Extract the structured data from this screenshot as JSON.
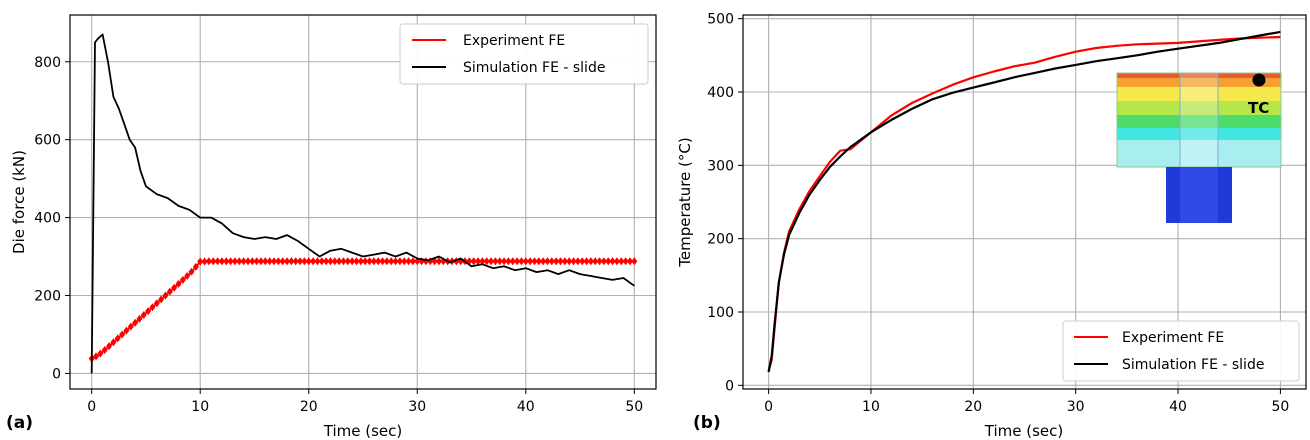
{
  "panels": [
    {
      "label": "(a)"
    },
    {
      "label": "(b)"
    }
  ],
  "chart_data": [
    {
      "type": "line",
      "xlabel": "Time (sec)",
      "ylabel": "Die force (kN)",
      "xlim": [
        -2,
        52
      ],
      "ylim": [
        -40,
        920
      ],
      "xticks": [
        0,
        10,
        20,
        30,
        40,
        50
      ],
      "yticks": [
        0,
        200,
        400,
        600,
        800
      ],
      "grid": true,
      "legend_position": "top-right",
      "series": [
        {
          "name": "Experiment FE",
          "color": "#ff0000",
          "marker": "diamond",
          "x": [
            0,
            0.5,
            1,
            2,
            3,
            4,
            5,
            6,
            7,
            8,
            9,
            9.5,
            10,
            11,
            12,
            14,
            16,
            18,
            20,
            22,
            24,
            26,
            28,
            30,
            32,
            34,
            36,
            38,
            40,
            42,
            44,
            46,
            48,
            50
          ],
          "values": [
            38,
            45,
            55,
            80,
            105,
            130,
            155,
            180,
            205,
            230,
            255,
            270,
            287,
            288,
            288,
            288,
            288,
            288,
            288,
            288,
            288,
            288,
            288,
            288,
            288,
            288,
            288,
            288,
            288,
            288,
            288,
            288,
            288,
            288
          ]
        },
        {
          "name": "Simulation FE - slide",
          "color": "#000000",
          "x": [
            0,
            0.3,
            0.6,
            1,
            1.5,
            2,
            2.5,
            3,
            3.5,
            4,
            4.5,
            5,
            6,
            7,
            8,
            9,
            10,
            11,
            12,
            13,
            14,
            15,
            16,
            17,
            18,
            19,
            20,
            21,
            22,
            23,
            24,
            25,
            26,
            27,
            28,
            29,
            30,
            31,
            32,
            33,
            34,
            35,
            36,
            37,
            38,
            39,
            40,
            41,
            42,
            43,
            44,
            45,
            46,
            47,
            48,
            49,
            50
          ],
          "values": [
            0,
            850,
            860,
            870,
            800,
            710,
            680,
            640,
            600,
            580,
            520,
            480,
            460,
            450,
            430,
            420,
            400,
            400,
            385,
            360,
            350,
            345,
            350,
            345,
            355,
            340,
            320,
            300,
            315,
            320,
            310,
            300,
            305,
            310,
            300,
            310,
            295,
            290,
            300,
            285,
            295,
            275,
            280,
            270,
            275,
            265,
            270,
            260,
            265,
            255,
            265,
            255,
            250,
            245,
            240,
            245,
            225
          ]
        }
      ]
    },
    {
      "type": "line",
      "xlabel": "Time (sec)",
      "ylabel": "Temperature (°C)",
      "xlim": [
        -2.5,
        52.5
      ],
      "ylim": [
        -5,
        505
      ],
      "xticks": [
        0,
        10,
        20,
        30,
        40,
        50
      ],
      "yticks": [
        0,
        100,
        200,
        300,
        400,
        500
      ],
      "grid": true,
      "legend_position": "bottom-right",
      "inset_label": "TC",
      "series": [
        {
          "name": "Experiment FE",
          "color": "#ff0000",
          "x": [
            0,
            0.3,
            0.6,
            1,
            1.5,
            2,
            3,
            4,
            5,
            6,
            7,
            8,
            10,
            12,
            14,
            16,
            18,
            20,
            22,
            24,
            26,
            28,
            30,
            32,
            34,
            36,
            38,
            40,
            42,
            44,
            46,
            48,
            50
          ],
          "values": [
            20,
            35,
            80,
            140,
            180,
            210,
            240,
            265,
            285,
            305,
            320,
            322,
            345,
            368,
            385,
            398,
            410,
            420,
            428,
            435,
            440,
            448,
            455,
            460,
            463,
            465,
            466,
            467,
            469,
            471,
            473,
            474,
            475
          ]
        },
        {
          "name": "Simulation FE - slide",
          "color": "#000000",
          "x": [
            0,
            0.3,
            0.6,
            1,
            1.5,
            2,
            3,
            4,
            5,
            6,
            7,
            8,
            10,
            12,
            14,
            16,
            18,
            20,
            22,
            24,
            26,
            28,
            30,
            32,
            34,
            36,
            38,
            40,
            42,
            44,
            46,
            48,
            50
          ],
          "values": [
            18,
            40,
            85,
            140,
            178,
            205,
            235,
            260,
            280,
            298,
            312,
            325,
            345,
            362,
            377,
            390,
            399,
            406,
            413,
            420,
            426,
            432,
            437,
            442,
            446,
            450,
            455,
            459,
            463,
            467,
            472,
            477,
            482
          ]
        }
      ]
    }
  ]
}
